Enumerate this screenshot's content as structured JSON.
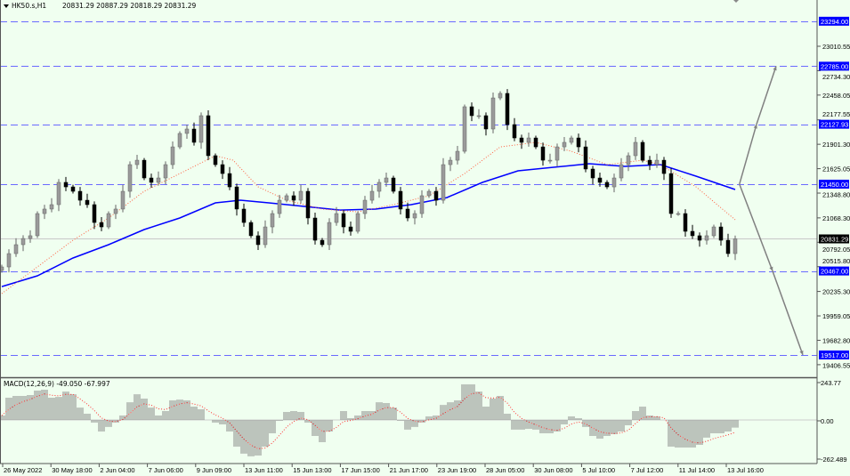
{
  "header": {
    "symbol": "HK50.s,H1",
    "ohlc": "20831.29 20887.29 20818.29 20831.29"
  },
  "indicator_label": "MACD(12,26,9) -49.050 -67.997",
  "colors": {
    "background": "#f0fff0",
    "bull": "#9a9a9a",
    "bear": "#000000",
    "ma_slow": "#0000ff",
    "ma_fast": "#ff6040",
    "level_line": "#6a6aff",
    "level_label_bg": "#0000ff",
    "price_label_bg": "#000000",
    "histogram": "#888888",
    "signal": "#ff3030",
    "arrow": "#808080"
  },
  "chart_data": [
    {
      "type": "candlestick",
      "title": "",
      "price_axis_ticks": [
        "23010.55",
        "22734.30",
        "22458.05",
        "22177.55",
        "21901.30",
        "21625.05",
        "21348.80",
        "21068.30",
        "20792.05",
        "20515.80",
        "20235.30",
        "19959.05",
        "19682.80",
        "19406.55"
      ],
      "ylim": [
        19300,
        23520
      ],
      "time_axis_labels": [
        "26 May 2022",
        "30 May 18:00",
        "2 Jun 04:00",
        "7 Jun 06:00",
        "9 Jun 09:00",
        "13 Jun 11:00",
        "15 Jun 13:00",
        "17 Jun 15:00",
        "21 Jun 17:00",
        "23 Jun 19:00",
        "28 Jun 05:00",
        "30 Jun 08:00",
        "5 Jul 10:00",
        "7 Jul 12:00",
        "11 Jul 14:00",
        "13 Jul 16:00"
      ],
      "current_price": "20831.29",
      "levels": [
        "23294.00",
        "22785.00",
        "22127.93",
        "21450.00",
        "20467.00",
        "19517.00"
      ],
      "closes": [
        20513,
        20664,
        20765,
        20835,
        20866,
        21117,
        21168,
        21218,
        21470,
        21419,
        21369,
        21268,
        21218,
        21016,
        20966,
        21117,
        21168,
        21369,
        21671,
        21721,
        21520,
        21470,
        21520,
        21671,
        21872,
        22024,
        22074,
        21923,
        22225,
        21772,
        21671,
        21570,
        21419,
        21168,
        21016,
        20866,
        20765,
        20966,
        21117,
        21268,
        21319,
        21268,
        21369,
        21067,
        20815,
        20765,
        21016,
        21117,
        20966,
        20916,
        21117,
        21268,
        21369,
        21470,
        21520,
        21369,
        21168,
        21067,
        21117,
        21319,
        21369,
        21268,
        21671,
        21721,
        21822,
        22326,
        22225,
        22225,
        22074,
        22426,
        22477,
        22124,
        21973,
        21923,
        21973,
        21872,
        21721,
        21721,
        21872,
        21923,
        21973,
        21872,
        21621,
        21520,
        21470,
        21419,
        21520,
        21671,
        21772,
        21923,
        21721,
        21671,
        21721,
        21570,
        21117,
        21117,
        20916,
        20866,
        20815,
        20866,
        20966,
        20815,
        20664,
        20831.29
      ],
      "ma_slow": [
        [
          0,
          20291
        ],
        [
          5,
          20412
        ],
        [
          10,
          20614
        ],
        [
          15,
          20765
        ],
        [
          20,
          20936
        ],
        [
          25,
          21067
        ],
        [
          30,
          21238
        ],
        [
          33.5,
          21268
        ],
        [
          37.5,
          21238
        ],
        [
          42.5,
          21198
        ],
        [
          47.5,
          21157
        ],
        [
          52.5,
          21168
        ],
        [
          57.5,
          21218
        ],
        [
          62.5,
          21298
        ],
        [
          67.5,
          21470
        ],
        [
          72.5,
          21601
        ],
        [
          77.5,
          21641
        ],
        [
          82.5,
          21681
        ],
        [
          87.5,
          21651
        ],
        [
          92.5,
          21671
        ],
        [
          97.5,
          21540
        ],
        [
          103,
          21389
        ]
      ],
      "ma_fast": [
        [
          0,
          20211
        ],
        [
          5,
          20513
        ],
        [
          10,
          20815
        ],
        [
          15,
          21067
        ],
        [
          20,
          21369
        ],
        [
          25,
          21570
        ],
        [
          30,
          21772
        ],
        [
          32.5,
          21721
        ],
        [
          36,
          21419
        ],
        [
          40,
          21268
        ],
        [
          45,
          21168
        ],
        [
          50,
          21137
        ],
        [
          55,
          21218
        ],
        [
          60,
          21319
        ],
        [
          65,
          21570
        ],
        [
          70,
          21872
        ],
        [
          75,
          21923
        ],
        [
          80,
          21822
        ],
        [
          85,
          21671
        ],
        [
          90,
          21721
        ],
        [
          92.5,
          21671
        ],
        [
          97.5,
          21419
        ],
        [
          103,
          21047
        ]
      ],
      "projection": {
        "start": [
          103.6,
          21450
        ],
        "up": [
          [
            106,
            22127.93
          ],
          [
            108.75,
            22785
          ]
        ],
        "down": [
          [
            108.25,
            20467
          ],
          [
            112.5,
            19517
          ]
        ]
      }
    },
    {
      "type": "bar",
      "title": "MACD(12,26,9)",
      "axis_ticks": [
        "243.77",
        "0.00",
        "-262.489"
      ],
      "ylim": [
        -270,
        250
      ],
      "histogram": [
        28,
        142,
        153,
        153,
        159,
        187,
        193,
        142,
        147,
        181,
        164,
        79,
        40,
        -17,
        -74,
        -45,
        -17,
        28,
        113,
        164,
        136,
        79,
        28,
        57,
        125,
        130,
        125,
        85,
        68,
        0,
        -17,
        -28,
        -74,
        -170,
        -215,
        -232,
        -227,
        -170,
        -85,
        -6,
        51,
        57,
        51,
        -17,
        -102,
        -142,
        -74,
        0,
        57,
        11,
        28,
        57,
        57,
        113,
        108,
        79,
        -6,
        -62,
        -45,
        -17,
        23,
        28,
        96,
        113,
        125,
        227,
        227,
        181,
        85,
        136,
        153,
        40,
        -62,
        -62,
        -57,
        -62,
        -85,
        -85,
        -74,
        -28,
        23,
        11,
        -45,
        -102,
        -119,
        -102,
        -91,
        -74,
        -34,
        57,
        85,
        28,
        23,
        0,
        -170,
        -176,
        -176,
        -176,
        -159,
        -113,
        -85,
        -85,
        -74,
        -49.05
      ]
    }
  ]
}
